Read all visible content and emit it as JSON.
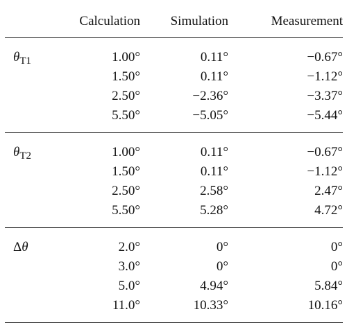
{
  "headers": [
    "Calculation",
    "Simulation",
    "Measurement"
  ],
  "groups": [
    {
      "symbol": "θ",
      "subscript": "T1",
      "rows": [
        [
          "1.00°",
          "0.11°",
          "−0.67°"
        ],
        [
          "1.50°",
          "0.11°",
          "−1.12°"
        ],
        [
          "2.50°",
          "−2.36°",
          "−3.37°"
        ],
        [
          "5.50°",
          "−5.05°",
          "−5.44°"
        ]
      ]
    },
    {
      "symbol": "θ",
      "subscript": "T2",
      "rows": [
        [
          "1.00°",
          "0.11°",
          "−0.67°"
        ],
        [
          "1.50°",
          "0.11°",
          "−1.12°"
        ],
        [
          "2.50°",
          "2.58°",
          "2.47°"
        ],
        [
          "5.50°",
          "5.28°",
          "4.72°"
        ]
      ]
    },
    {
      "symbol_prefix": "Δ",
      "symbol": "θ",
      "subscript": "",
      "rows": [
        [
          "2.0°",
          "0°",
          "0°"
        ],
        [
          "3.0°",
          "0°",
          "0°"
        ],
        [
          "5.0°",
          "4.94°",
          "5.84°"
        ],
        [
          "11.0°",
          "10.33°",
          "10.16°"
        ]
      ]
    }
  ]
}
